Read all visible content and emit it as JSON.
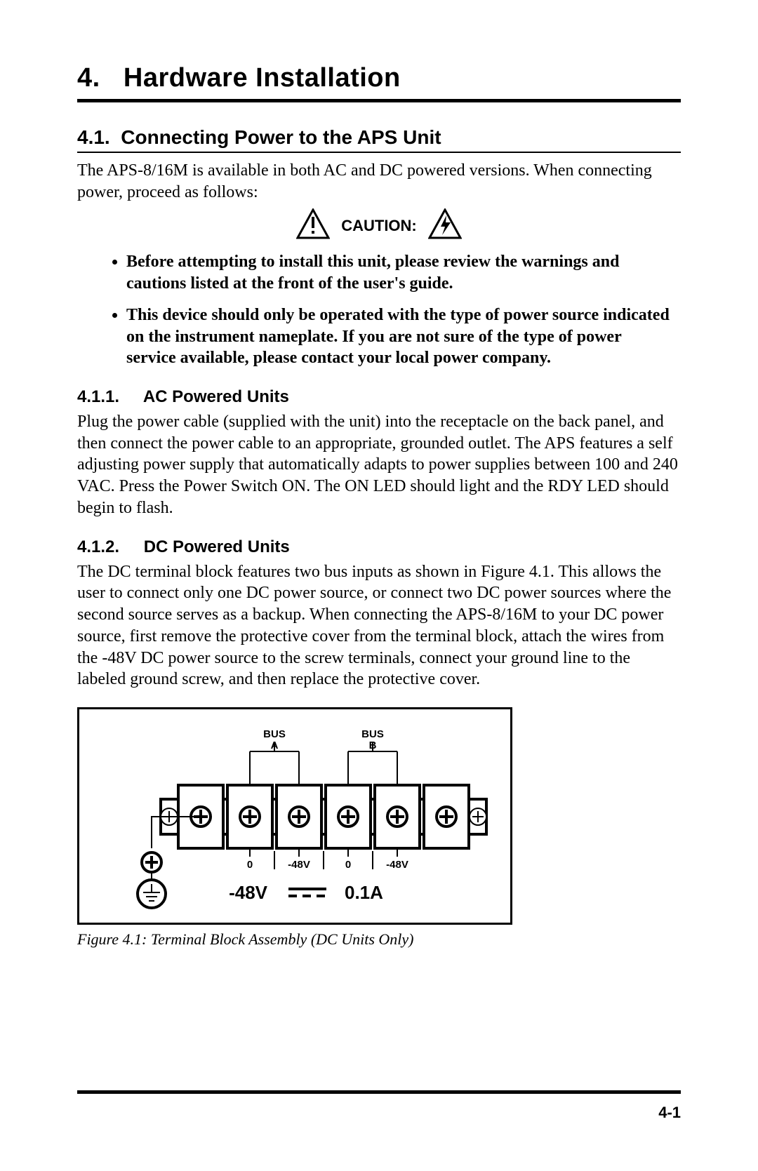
{
  "chapter": {
    "number": "4.",
    "title": "Hardware Installation"
  },
  "section_4_1": {
    "number": "4.1.",
    "title": "Connecting Power to the APS Unit",
    "intro": "The APS-8/16M is available in both AC and DC powered versions.  When connecting power, proceed as follows:"
  },
  "caution": {
    "label": "CAUTION:",
    "bullets": [
      "Before attempting to install this unit, please review the warnings and cautions listed at the front of the user's guide.",
      "This device should only be operated with the type of power source indicated on the instrument nameplate.  If you are not sure of the type of power service available, please contact your local power company."
    ]
  },
  "section_4_1_1": {
    "number": "4.1.1.",
    "title": "AC Powered Units",
    "body": "Plug the power cable (supplied with the unit) into the receptacle on the back panel, and then connect the power cable to an appropriate, grounded outlet.  The APS features a self adjusting power supply that automatically adapts to power supplies between 100 and 240 VAC.  Press the Power Switch ON.  The ON LED should light and the RDY LED should begin to flash."
  },
  "section_4_1_2": {
    "number": "4.1.2.",
    "title": "DC Powered Units",
    "body": "The DC terminal block features two bus inputs as shown in Figure 4.1.  This allows the user to connect only one DC power source, or connect two DC power sources where the second source serves as a backup.  When connecting the APS-8/16M to your DC power source, first remove the protective cover from the terminal block, attach the wires from the -48V DC power source to the screw terminals, connect your ground line to the labeled ground screw, and then replace the protective cover."
  },
  "figure": {
    "caption": "Figure 4.1:  Terminal Block Assembly (DC Units Only)",
    "labels": {
      "bus_a_top": "BUS",
      "bus_a_bottom": "A",
      "bus_b_top": "BUS",
      "bus_b_bottom": "B",
      "t1": "0",
      "t2": "-48V",
      "t3": "0",
      "t4": "-48V",
      "voltage": "-48V",
      "current": "0.1A"
    },
    "style": {
      "stroke": "#000000",
      "fill": "#ffffff",
      "stroke_width_thick": 4,
      "stroke_width_thin": 2,
      "terminal_count": 6,
      "screw_radius": 14,
      "block_width": 420,
      "block_height": 90,
      "label_fontsize_small": 15,
      "label_fontsize_med": 18,
      "label_fontsize_big": 26
    }
  },
  "page_number": "4-1",
  "colors": {
    "text": "#000000",
    "bg": "#ffffff",
    "rule": "#000000"
  }
}
